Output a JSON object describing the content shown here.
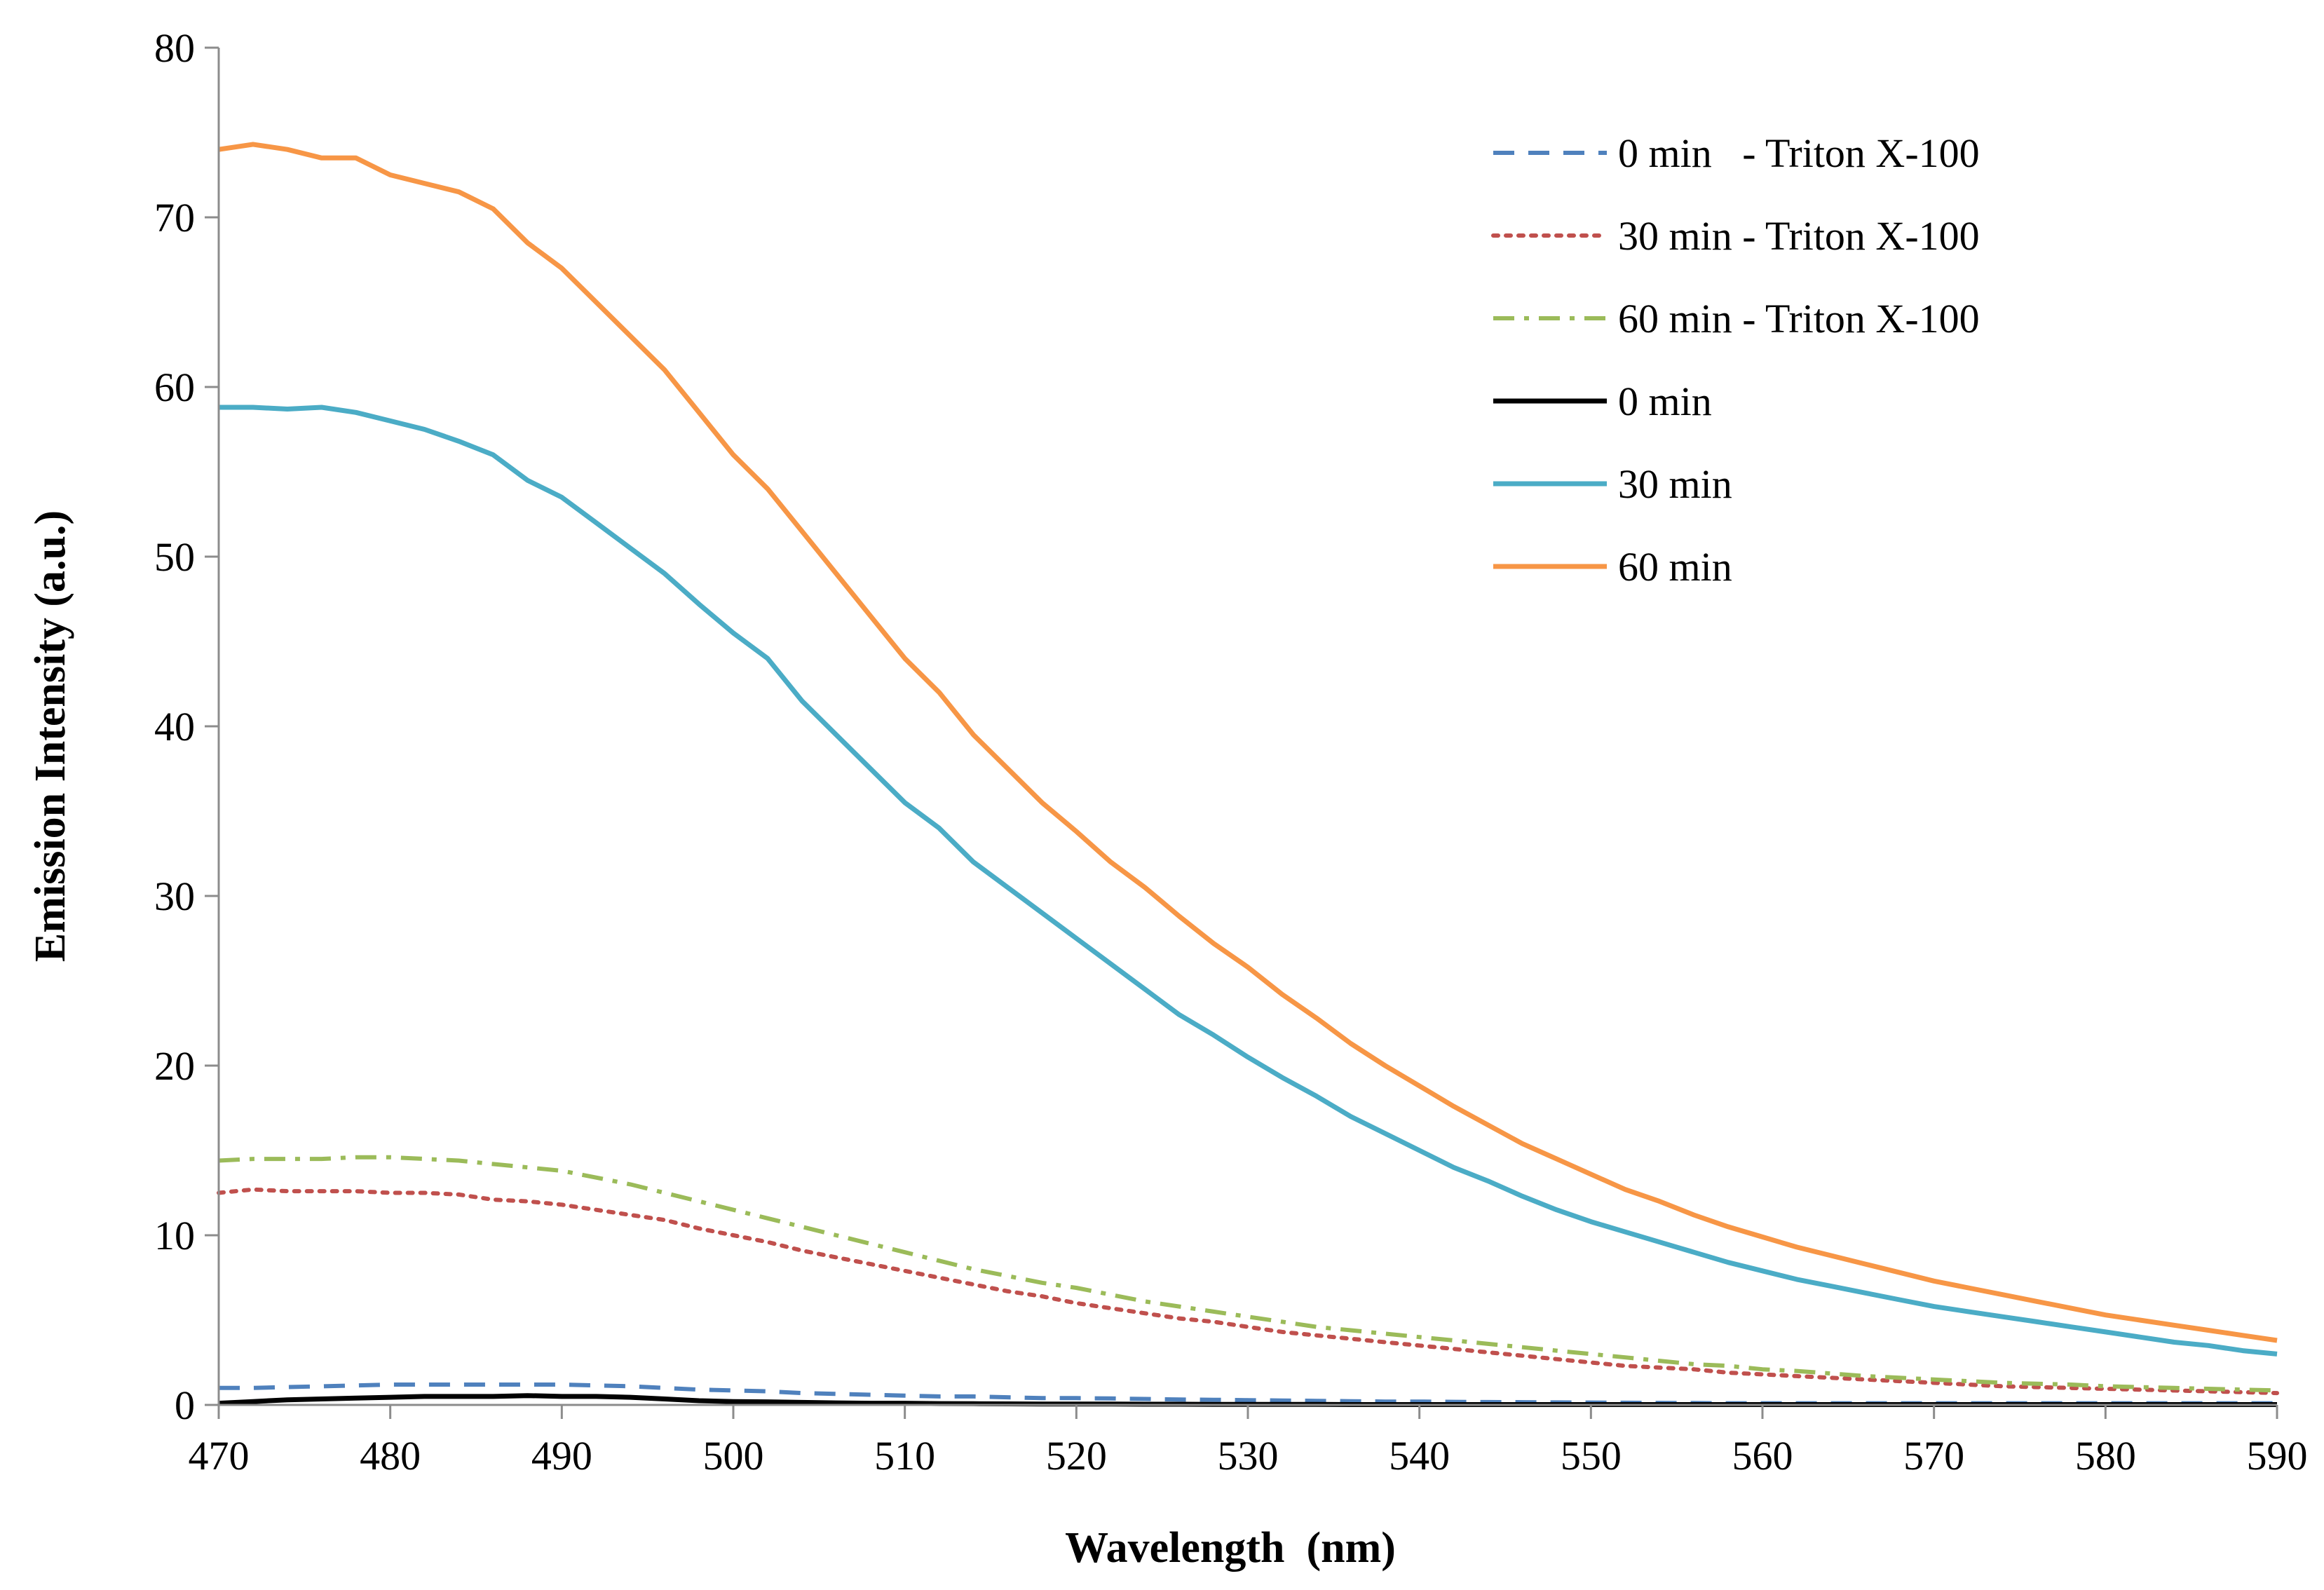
{
  "chart_data": {
    "type": "line",
    "title": "",
    "xlabel": "Wavelength  (nm)",
    "ylabel": "Emission Intensity (a.u.)",
    "xlim": [
      470,
      590
    ],
    "ylim": [
      0,
      80
    ],
    "xticks": [
      470,
      480,
      490,
      500,
      510,
      520,
      530,
      540,
      550,
      560,
      570,
      580,
      590
    ],
    "yticks": [
      0,
      10,
      20,
      30,
      40,
      50,
      60,
      70,
      80
    ],
    "grid": false,
    "legend_position": "top-right",
    "x": [
      470,
      472,
      474,
      476,
      478,
      480,
      482,
      484,
      486,
      488,
      490,
      492,
      494,
      496,
      498,
      500,
      502,
      504,
      506,
      508,
      510,
      512,
      514,
      516,
      518,
      520,
      522,
      524,
      526,
      528,
      530,
      532,
      534,
      536,
      538,
      540,
      542,
      544,
      546,
      548,
      550,
      552,
      554,
      556,
      558,
      560,
      562,
      564,
      566,
      568,
      570,
      572,
      574,
      576,
      578,
      580,
      582,
      584,
      586,
      588,
      590
    ],
    "series": [
      {
        "name": "0 min   - Triton X-100",
        "color": "#4f81bd",
        "style": "dashed",
        "values": [
          1.0,
          1.0,
          1.05,
          1.1,
          1.15,
          1.2,
          1.2,
          1.2,
          1.2,
          1.2,
          1.2,
          1.15,
          1.1,
          1.0,
          0.9,
          0.85,
          0.8,
          0.7,
          0.65,
          0.6,
          0.55,
          0.5,
          0.5,
          0.45,
          0.4,
          0.4,
          0.38,
          0.35,
          0.32,
          0.3,
          0.28,
          0.26,
          0.24,
          0.22,
          0.2,
          0.2,
          0.18,
          0.17,
          0.16,
          0.15,
          0.14,
          0.13,
          0.12,
          0.11,
          0.1,
          0.1,
          0.1,
          0.1,
          0.1,
          0.1,
          0.1,
          0.1,
          0.1,
          0.1,
          0.1,
          0.1,
          0.1,
          0.1,
          0.1,
          0.1,
          0.1
        ]
      },
      {
        "name": "30 min - Triton X-100",
        "color": "#c0504d",
        "style": "dotted",
        "values": [
          12.5,
          12.7,
          12.6,
          12.6,
          12.6,
          12.5,
          12.5,
          12.4,
          12.1,
          12.0,
          11.8,
          11.5,
          11.2,
          10.9,
          10.4,
          10.0,
          9.6,
          9.1,
          8.7,
          8.3,
          7.9,
          7.5,
          7.1,
          6.7,
          6.4,
          6.0,
          5.7,
          5.4,
          5.1,
          4.9,
          4.6,
          4.3,
          4.1,
          3.9,
          3.7,
          3.5,
          3.3,
          3.1,
          2.9,
          2.7,
          2.5,
          2.3,
          2.2,
          2.1,
          1.9,
          1.8,
          1.7,
          1.6,
          1.5,
          1.4,
          1.3,
          1.2,
          1.1,
          1.05,
          1.0,
          0.95,
          0.9,
          0.85,
          0.8,
          0.75,
          0.7
        ]
      },
      {
        "name": "60 min - Triton X-100",
        "color": "#9bbb59",
        "style": "dashdot",
        "values": [
          14.4,
          14.5,
          14.5,
          14.5,
          14.6,
          14.6,
          14.5,
          14.4,
          14.2,
          14.0,
          13.8,
          13.4,
          13.0,
          12.5,
          12.0,
          11.5,
          11.0,
          10.5,
          10.0,
          9.5,
          9.0,
          8.5,
          8.0,
          7.6,
          7.2,
          6.9,
          6.5,
          6.1,
          5.8,
          5.5,
          5.2,
          4.9,
          4.6,
          4.4,
          4.2,
          4.0,
          3.8,
          3.6,
          3.4,
          3.2,
          3.0,
          2.8,
          2.6,
          2.4,
          2.3,
          2.1,
          2.0,
          1.85,
          1.7,
          1.6,
          1.5,
          1.4,
          1.3,
          1.25,
          1.2,
          1.1,
          1.05,
          1.0,
          0.95,
          0.9,
          0.85
        ]
      },
      {
        "name": "0 min",
        "color": "#000000",
        "style": "solid",
        "values": [
          0.1,
          0.2,
          0.3,
          0.35,
          0.4,
          0.45,
          0.5,
          0.5,
          0.5,
          0.55,
          0.5,
          0.5,
          0.45,
          0.35,
          0.25,
          0.2,
          0.18,
          0.15,
          0.12,
          0.1,
          0.1,
          0.08,
          0.07,
          0.06,
          0.05,
          0.05,
          0.05,
          0.04,
          0.04,
          0.03,
          0.03,
          0.03,
          0.03,
          0.02,
          0.02,
          0.02,
          0.02,
          0.02,
          0.02,
          0.02,
          0.02,
          0.02,
          0.02,
          0.02,
          0.02,
          0.02,
          0.02,
          0.02,
          0.02,
          0.02,
          0.02,
          0.02,
          0.02,
          0.02,
          0.02,
          0.02,
          0.02,
          0.02,
          0.02,
          0.02,
          0.02
        ]
      },
      {
        "name": "30 min",
        "color": "#4bacc6",
        "style": "solid",
        "values": [
          58.8,
          58.8,
          58.7,
          58.8,
          58.5,
          58.0,
          57.5,
          56.8,
          56.0,
          54.5,
          53.5,
          52.0,
          50.5,
          49.0,
          47.2,
          45.5,
          44.0,
          41.5,
          39.5,
          37.5,
          35.5,
          34.0,
          32.0,
          30.5,
          29.0,
          27.5,
          26.0,
          24.5,
          23.0,
          21.8,
          20.5,
          19.3,
          18.2,
          17.0,
          16.0,
          15.0,
          14.0,
          13.2,
          12.3,
          11.5,
          10.8,
          10.2,
          9.6,
          9.0,
          8.4,
          7.9,
          7.4,
          7.0,
          6.6,
          6.2,
          5.8,
          5.5,
          5.2,
          4.9,
          4.6,
          4.3,
          4.0,
          3.7,
          3.5,
          3.2,
          3.0
        ]
      },
      {
        "name": "60 min",
        "color": "#f79646",
        "style": "solid",
        "values": [
          74.0,
          74.3,
          74.0,
          73.5,
          73.5,
          72.5,
          72.0,
          71.5,
          70.5,
          68.5,
          67.0,
          65.0,
          63.0,
          61.0,
          58.5,
          56.0,
          54.0,
          51.5,
          49.0,
          46.5,
          44.0,
          42.0,
          39.5,
          37.5,
          35.5,
          33.8,
          32.0,
          30.5,
          28.8,
          27.2,
          25.8,
          24.2,
          22.8,
          21.3,
          20.0,
          18.8,
          17.6,
          16.5,
          15.4,
          14.5,
          13.6,
          12.7,
          12.0,
          11.2,
          10.5,
          9.9,
          9.3,
          8.8,
          8.3,
          7.8,
          7.3,
          6.9,
          6.5,
          6.1,
          5.7,
          5.3,
          5.0,
          4.7,
          4.4,
          4.1,
          3.8
        ]
      }
    ]
  }
}
